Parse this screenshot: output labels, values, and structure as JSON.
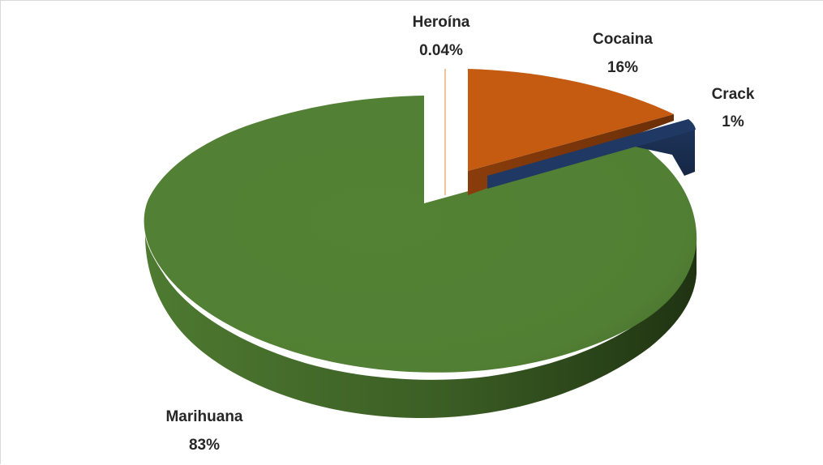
{
  "chart_data": {
    "type": "pie",
    "style": "3d-exploded",
    "title": "",
    "slices": [
      {
        "label": "Marihuana",
        "value": 83,
        "display": "83%",
        "color": "#548235",
        "explode": false
      },
      {
        "label": "Heroína",
        "value": 0.04,
        "display": "0.04%",
        "color": "#c55a11",
        "explode": true
      },
      {
        "label": "Cocaina",
        "value": 16,
        "display": "16%",
        "color": "#c55a11",
        "explode": true
      },
      {
        "label": "Crack",
        "value": 1,
        "display": "1%",
        "color": "#203864",
        "explode": true
      }
    ],
    "legend": "none"
  }
}
